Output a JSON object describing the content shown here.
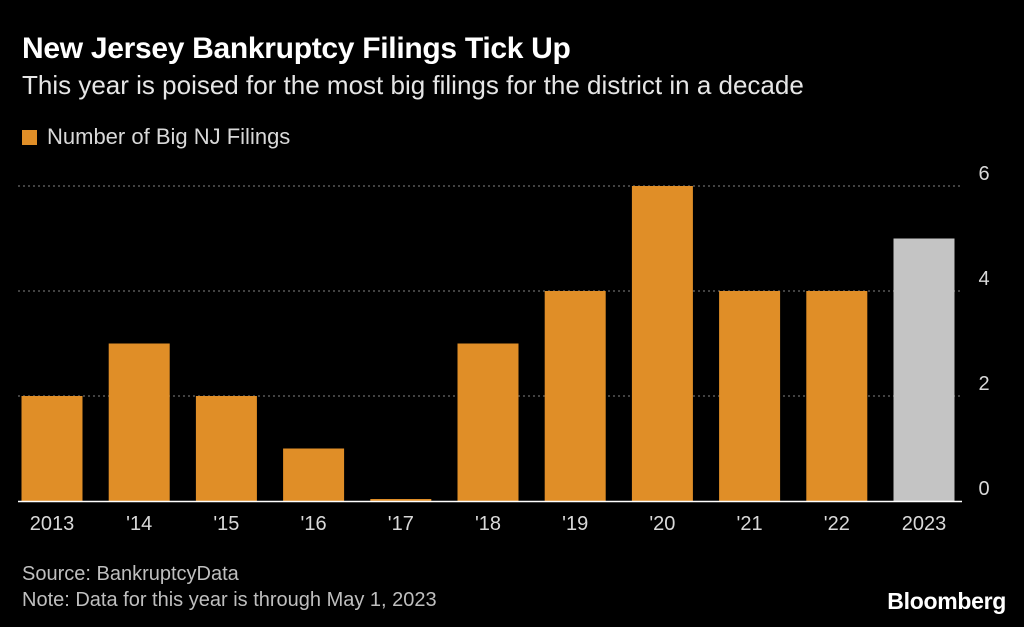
{
  "header": {
    "title": "New Jersey Bankruptcy Filings Tick Up",
    "subtitle": "This year is poised for the most big filings for the district in a decade"
  },
  "legend": {
    "label": "Number of Big NJ Filings"
  },
  "colors": {
    "bar": "#e08e27",
    "highlight_bar": "#c4c4c4",
    "grid": "#6a6a6a",
    "axis": "#ffffff",
    "tick_text": "#d9d9d9"
  },
  "chart_data": {
    "type": "bar",
    "title": "New Jersey Bankruptcy Filings Tick Up",
    "subtitle": "This year is poised for the most big filings for the district in a decade",
    "categories": [
      "2013",
      "'14",
      "'15",
      "'16",
      "'17",
      "'18",
      "'19",
      "'20",
      "'21",
      "'22",
      "2023"
    ],
    "series": [
      {
        "name": "Number of Big NJ Filings",
        "values": [
          2,
          3,
          2,
          1,
          0,
          3,
          4,
          6,
          4,
          4,
          5
        ]
      }
    ],
    "highlight_index": 10,
    "ylim": [
      0,
      6
    ],
    "yticks": [
      0,
      2,
      4,
      6
    ],
    "ytick_labels": [
      "0",
      "2",
      "4",
      "6"
    ],
    "grid": true,
    "legend_position": "top-left",
    "yaxis_position": "right",
    "xlabel": "",
    "ylabel": ""
  },
  "footer": {
    "source": "Source: BankruptcyData",
    "note": "Note: Data for this year is through May 1, 2023",
    "brand": "Bloomberg"
  }
}
